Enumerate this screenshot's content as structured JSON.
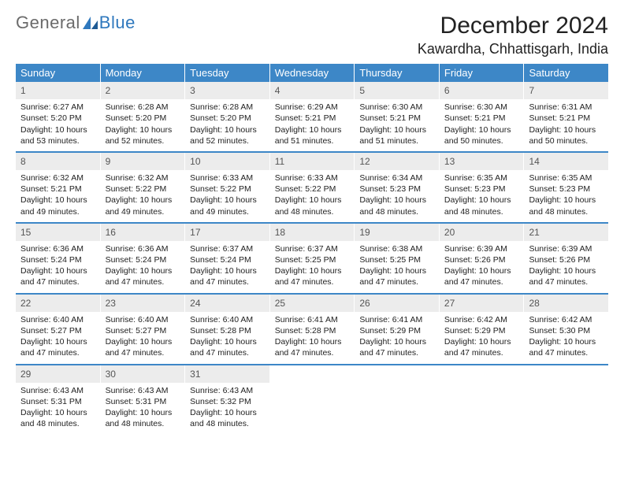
{
  "brand": {
    "part1": "General",
    "part2": "Blue"
  },
  "title": "December 2024",
  "location": "Kawardha, Chhattisgarh, India",
  "colors": {
    "header_bg": "#3d87c7",
    "header_text": "#ffffff",
    "daynum_bg": "#ececec",
    "week_divider": "#3d87c7",
    "body_text": "#222222",
    "logo_gray": "#6b6b6b",
    "logo_blue": "#2f78bd",
    "page_bg": "#ffffff"
  },
  "typography": {
    "title_fontsize": 30,
    "location_fontsize": 18,
    "dow_fontsize": 13,
    "daynum_fontsize": 12,
    "cell_fontsize": 10.5
  },
  "days_of_week": [
    "Sunday",
    "Monday",
    "Tuesday",
    "Wednesday",
    "Thursday",
    "Friday",
    "Saturday"
  ],
  "weeks": [
    [
      {
        "n": "1",
        "sunrise": "Sunrise: 6:27 AM",
        "sunset": "Sunset: 5:20 PM",
        "dl1": "Daylight: 10 hours",
        "dl2": "and 53 minutes."
      },
      {
        "n": "2",
        "sunrise": "Sunrise: 6:28 AM",
        "sunset": "Sunset: 5:20 PM",
        "dl1": "Daylight: 10 hours",
        "dl2": "and 52 minutes."
      },
      {
        "n": "3",
        "sunrise": "Sunrise: 6:28 AM",
        "sunset": "Sunset: 5:20 PM",
        "dl1": "Daylight: 10 hours",
        "dl2": "and 52 minutes."
      },
      {
        "n": "4",
        "sunrise": "Sunrise: 6:29 AM",
        "sunset": "Sunset: 5:21 PM",
        "dl1": "Daylight: 10 hours",
        "dl2": "and 51 minutes."
      },
      {
        "n": "5",
        "sunrise": "Sunrise: 6:30 AM",
        "sunset": "Sunset: 5:21 PM",
        "dl1": "Daylight: 10 hours",
        "dl2": "and 51 minutes."
      },
      {
        "n": "6",
        "sunrise": "Sunrise: 6:30 AM",
        "sunset": "Sunset: 5:21 PM",
        "dl1": "Daylight: 10 hours",
        "dl2": "and 50 minutes."
      },
      {
        "n": "7",
        "sunrise": "Sunrise: 6:31 AM",
        "sunset": "Sunset: 5:21 PM",
        "dl1": "Daylight: 10 hours",
        "dl2": "and 50 minutes."
      }
    ],
    [
      {
        "n": "8",
        "sunrise": "Sunrise: 6:32 AM",
        "sunset": "Sunset: 5:21 PM",
        "dl1": "Daylight: 10 hours",
        "dl2": "and 49 minutes."
      },
      {
        "n": "9",
        "sunrise": "Sunrise: 6:32 AM",
        "sunset": "Sunset: 5:22 PM",
        "dl1": "Daylight: 10 hours",
        "dl2": "and 49 minutes."
      },
      {
        "n": "10",
        "sunrise": "Sunrise: 6:33 AM",
        "sunset": "Sunset: 5:22 PM",
        "dl1": "Daylight: 10 hours",
        "dl2": "and 49 minutes."
      },
      {
        "n": "11",
        "sunrise": "Sunrise: 6:33 AM",
        "sunset": "Sunset: 5:22 PM",
        "dl1": "Daylight: 10 hours",
        "dl2": "and 48 minutes."
      },
      {
        "n": "12",
        "sunrise": "Sunrise: 6:34 AM",
        "sunset": "Sunset: 5:23 PM",
        "dl1": "Daylight: 10 hours",
        "dl2": "and 48 minutes."
      },
      {
        "n": "13",
        "sunrise": "Sunrise: 6:35 AM",
        "sunset": "Sunset: 5:23 PM",
        "dl1": "Daylight: 10 hours",
        "dl2": "and 48 minutes."
      },
      {
        "n": "14",
        "sunrise": "Sunrise: 6:35 AM",
        "sunset": "Sunset: 5:23 PM",
        "dl1": "Daylight: 10 hours",
        "dl2": "and 48 minutes."
      }
    ],
    [
      {
        "n": "15",
        "sunrise": "Sunrise: 6:36 AM",
        "sunset": "Sunset: 5:24 PM",
        "dl1": "Daylight: 10 hours",
        "dl2": "and 47 minutes."
      },
      {
        "n": "16",
        "sunrise": "Sunrise: 6:36 AM",
        "sunset": "Sunset: 5:24 PM",
        "dl1": "Daylight: 10 hours",
        "dl2": "and 47 minutes."
      },
      {
        "n": "17",
        "sunrise": "Sunrise: 6:37 AM",
        "sunset": "Sunset: 5:24 PM",
        "dl1": "Daylight: 10 hours",
        "dl2": "and 47 minutes."
      },
      {
        "n": "18",
        "sunrise": "Sunrise: 6:37 AM",
        "sunset": "Sunset: 5:25 PM",
        "dl1": "Daylight: 10 hours",
        "dl2": "and 47 minutes."
      },
      {
        "n": "19",
        "sunrise": "Sunrise: 6:38 AM",
        "sunset": "Sunset: 5:25 PM",
        "dl1": "Daylight: 10 hours",
        "dl2": "and 47 minutes."
      },
      {
        "n": "20",
        "sunrise": "Sunrise: 6:39 AM",
        "sunset": "Sunset: 5:26 PM",
        "dl1": "Daylight: 10 hours",
        "dl2": "and 47 minutes."
      },
      {
        "n": "21",
        "sunrise": "Sunrise: 6:39 AM",
        "sunset": "Sunset: 5:26 PM",
        "dl1": "Daylight: 10 hours",
        "dl2": "and 47 minutes."
      }
    ],
    [
      {
        "n": "22",
        "sunrise": "Sunrise: 6:40 AM",
        "sunset": "Sunset: 5:27 PM",
        "dl1": "Daylight: 10 hours",
        "dl2": "and 47 minutes."
      },
      {
        "n": "23",
        "sunrise": "Sunrise: 6:40 AM",
        "sunset": "Sunset: 5:27 PM",
        "dl1": "Daylight: 10 hours",
        "dl2": "and 47 minutes."
      },
      {
        "n": "24",
        "sunrise": "Sunrise: 6:40 AM",
        "sunset": "Sunset: 5:28 PM",
        "dl1": "Daylight: 10 hours",
        "dl2": "and 47 minutes."
      },
      {
        "n": "25",
        "sunrise": "Sunrise: 6:41 AM",
        "sunset": "Sunset: 5:28 PM",
        "dl1": "Daylight: 10 hours",
        "dl2": "and 47 minutes."
      },
      {
        "n": "26",
        "sunrise": "Sunrise: 6:41 AM",
        "sunset": "Sunset: 5:29 PM",
        "dl1": "Daylight: 10 hours",
        "dl2": "and 47 minutes."
      },
      {
        "n": "27",
        "sunrise": "Sunrise: 6:42 AM",
        "sunset": "Sunset: 5:29 PM",
        "dl1": "Daylight: 10 hours",
        "dl2": "and 47 minutes."
      },
      {
        "n": "28",
        "sunrise": "Sunrise: 6:42 AM",
        "sunset": "Sunset: 5:30 PM",
        "dl1": "Daylight: 10 hours",
        "dl2": "and 47 minutes."
      }
    ],
    [
      {
        "n": "29",
        "sunrise": "Sunrise: 6:43 AM",
        "sunset": "Sunset: 5:31 PM",
        "dl1": "Daylight: 10 hours",
        "dl2": "and 48 minutes."
      },
      {
        "n": "30",
        "sunrise": "Sunrise: 6:43 AM",
        "sunset": "Sunset: 5:31 PM",
        "dl1": "Daylight: 10 hours",
        "dl2": "and 48 minutes."
      },
      {
        "n": "31",
        "sunrise": "Sunrise: 6:43 AM",
        "sunset": "Sunset: 5:32 PM",
        "dl1": "Daylight: 10 hours",
        "dl2": "and 48 minutes."
      },
      null,
      null,
      null,
      null
    ]
  ]
}
